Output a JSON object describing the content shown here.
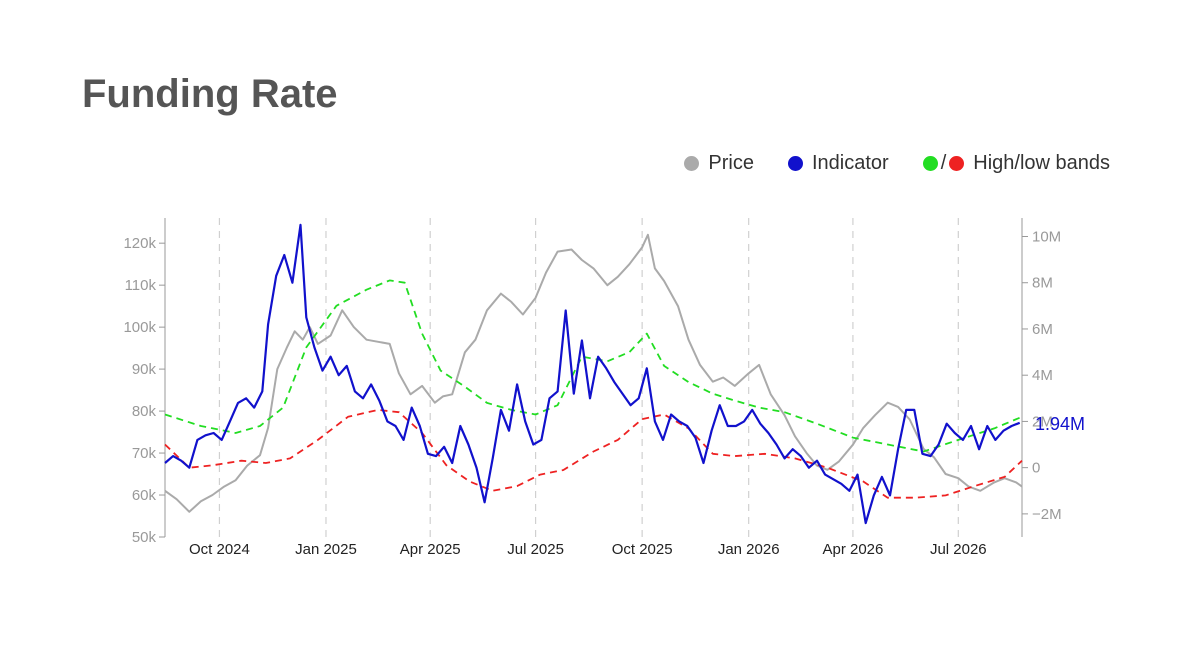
{
  "page": {
    "title": "Funding Rate"
  },
  "legend": {
    "price_label": "Price",
    "indicator_label": "Indicator",
    "bands_label": "High/low bands",
    "bands_separator": "/"
  },
  "colors": {
    "price": "#aaaaaa",
    "indicator": "#1111cc",
    "high_band": "#22dd22",
    "low_band": "#ee2222",
    "axis": "#999999",
    "grid": "#d0d0d0"
  },
  "chart_data": {
    "type": "line",
    "title": "Funding Rate",
    "x_axis": {
      "type": "date",
      "range": [
        "2024-08-15",
        "2026-08-25"
      ],
      "ticks": [
        {
          "date": "2024-10-01",
          "label": "Oct 2024"
        },
        {
          "date": "2025-01-01",
          "label": "Jan 2025"
        },
        {
          "date": "2025-04-01",
          "label": "Apr 2025"
        },
        {
          "date": "2025-07-01",
          "label": "Jul 2025"
        },
        {
          "date": "2025-10-01",
          "label": "Oct 2025"
        },
        {
          "date": "2026-01-01",
          "label": "Jan 2026"
        },
        {
          "date": "2026-04-01",
          "label": "Apr 2026"
        },
        {
          "date": "2026-07-01",
          "label": "Jul 2026"
        }
      ],
      "grid": "dashed-vertical"
    },
    "y_left": {
      "range": [
        50000,
        126000
      ],
      "ticks": [
        50000,
        60000,
        70000,
        80000,
        90000,
        100000,
        110000,
        120000
      ],
      "tick_labels": [
        "50k",
        "60k",
        "70k",
        "80k",
        "90k",
        "100k",
        "110k",
        "120k"
      ]
    },
    "y_right": {
      "range": [
        -3000000,
        10800000
      ],
      "ticks": [
        -2000000,
        0,
        2000000,
        4000000,
        6000000,
        8000000,
        10000000
      ],
      "tick_labels": [
        "−2M",
        "0",
        "2M",
        "4M",
        "6M",
        "8M",
        "10M"
      ]
    },
    "last_value_label": "1.94M",
    "series": [
      {
        "name": "Price",
        "axis": "left",
        "color": "#aaaaaa",
        "x": [
          "2024-08-15",
          "2024-08-25",
          "2024-09-05",
          "2024-09-15",
          "2024-09-25",
          "2024-10-05",
          "2024-10-15",
          "2024-10-25",
          "2024-11-05",
          "2024-11-12",
          "2024-11-20",
          "2024-11-28",
          "2024-12-05",
          "2024-12-12",
          "2024-12-18",
          "2024-12-25",
          "2025-01-05",
          "2025-01-15",
          "2025-01-25",
          "2025-02-05",
          "2025-02-15",
          "2025-02-25",
          "2025-03-05",
          "2025-03-15",
          "2025-03-25",
          "2025-04-05",
          "2025-04-12",
          "2025-04-20",
          "2025-05-01",
          "2025-05-10",
          "2025-05-20",
          "2025-06-01",
          "2025-06-10",
          "2025-06-20",
          "2025-07-01",
          "2025-07-10",
          "2025-07-20",
          "2025-08-01",
          "2025-08-10",
          "2025-08-20",
          "2025-09-01",
          "2025-09-10",
          "2025-09-20",
          "2025-10-01",
          "2025-10-06",
          "2025-10-12",
          "2025-10-20",
          "2025-11-01",
          "2025-11-10",
          "2025-11-20",
          "2025-12-01",
          "2025-12-10",
          "2025-12-20",
          "2026-01-01",
          "2026-01-10",
          "2026-01-20",
          "2026-02-01",
          "2026-02-10",
          "2026-02-20",
          "2026-03-01",
          "2026-03-10",
          "2026-03-20",
          "2026-04-01",
          "2026-04-10",
          "2026-04-20",
          "2026-05-01",
          "2026-05-10",
          "2026-05-20",
          "2026-06-01",
          "2026-06-10",
          "2026-06-20",
          "2026-07-01",
          "2026-07-10",
          "2026-07-20",
          "2026-08-01",
          "2026-08-10",
          "2026-08-20",
          "2026-08-25"
        ],
        "y": [
          61000,
          59000,
          56000,
          58500,
          60000,
          62000,
          63500,
          67000,
          69500,
          76000,
          90000,
          95000,
          99000,
          97000,
          100000,
          96000,
          98000,
          104000,
          100000,
          97000,
          96500,
          96000,
          89000,
          84000,
          86000,
          82000,
          83500,
          84000,
          94000,
          97000,
          104000,
          108000,
          106000,
          103000,
          107000,
          113000,
          118000,
          118500,
          116000,
          114000,
          110000,
          112000,
          115000,
          119000,
          122000,
          114000,
          111000,
          105000,
          97000,
          91000,
          87000,
          88000,
          86000,
          89000,
          91000,
          84000,
          79000,
          74000,
          70000,
          67000,
          66000,
          68000,
          72000,
          76000,
          79000,
          82000,
          81000,
          78000,
          71000,
          69000,
          65000,
          64000,
          62000,
          61000,
          63000,
          64000,
          63000,
          62000
        ]
      },
      {
        "name": "Indicator",
        "axis": "right",
        "color": "#1111cc",
        "x": [
          "2024-08-15",
          "2024-08-22",
          "2024-08-29",
          "2024-09-05",
          "2024-09-12",
          "2024-09-19",
          "2024-09-26",
          "2024-10-03",
          "2024-10-10",
          "2024-10-17",
          "2024-10-24",
          "2024-10-31",
          "2024-11-07",
          "2024-11-12",
          "2024-11-19",
          "2024-11-26",
          "2024-12-03",
          "2024-12-10",
          "2024-12-15",
          "2024-12-22",
          "2024-12-29",
          "2025-01-05",
          "2025-01-12",
          "2025-01-19",
          "2025-01-26",
          "2025-02-02",
          "2025-02-09",
          "2025-02-16",
          "2025-02-23",
          "2025-03-02",
          "2025-03-09",
          "2025-03-16",
          "2025-03-23",
          "2025-03-30",
          "2025-04-06",
          "2025-04-13",
          "2025-04-20",
          "2025-04-27",
          "2025-05-04",
          "2025-05-11",
          "2025-05-18",
          "2025-05-25",
          "2025-06-01",
          "2025-06-08",
          "2025-06-15",
          "2025-06-22",
          "2025-06-29",
          "2025-07-06",
          "2025-07-13",
          "2025-07-20",
          "2025-07-27",
          "2025-08-03",
          "2025-08-10",
          "2025-08-17",
          "2025-08-24",
          "2025-08-31",
          "2025-09-07",
          "2025-09-14",
          "2025-09-21",
          "2025-09-28",
          "2025-10-05",
          "2025-10-12",
          "2025-10-19",
          "2025-10-26",
          "2025-11-02",
          "2025-11-09",
          "2025-11-16",
          "2025-11-23",
          "2025-11-30",
          "2025-12-07",
          "2025-12-14",
          "2025-12-21",
          "2025-12-28",
          "2026-01-04",
          "2026-01-11",
          "2026-01-18",
          "2026-01-25",
          "2026-02-01",
          "2026-02-08",
          "2026-02-15",
          "2026-02-22",
          "2026-03-01",
          "2026-03-08",
          "2026-03-15",
          "2026-03-22",
          "2026-03-29",
          "2026-04-05",
          "2026-04-12",
          "2026-04-19",
          "2026-04-26",
          "2026-05-03",
          "2026-05-10",
          "2026-05-17",
          "2026-05-24",
          "2026-05-31",
          "2026-06-07",
          "2026-06-14",
          "2026-06-21",
          "2026-06-28",
          "2026-07-05",
          "2026-07-12",
          "2026-07-19",
          "2026-07-26",
          "2026-08-02",
          "2026-08-09",
          "2026-08-16",
          "2026-08-23"
        ],
        "y": [
          200000,
          500000,
          300000,
          0,
          1200000,
          1400000,
          1500000,
          1200000,
          2000000,
          2800000,
          3000000,
          2600000,
          3300000,
          6200000,
          8300000,
          9200000,
          8000000,
          10500000,
          6500000,
          5200000,
          4200000,
          4800000,
          4000000,
          4400000,
          3300000,
          3000000,
          3600000,
          2900000,
          2000000,
          1800000,
          1200000,
          2600000,
          1800000,
          600000,
          500000,
          900000,
          200000,
          1800000,
          1000000,
          0,
          -1500000,
          400000,
          2500000,
          1600000,
          3600000,
          2000000,
          1000000,
          1200000,
          3000000,
          3300000,
          6800000,
          3200000,
          5500000,
          3000000,
          4800000,
          4300000,
          3700000,
          3200000,
          2700000,
          3000000,
          4300000,
          2000000,
          1200000,
          2300000,
          2000000,
          1800000,
          1300000,
          200000,
          1600000,
          2700000,
          1800000,
          1800000,
          2000000,
          2500000,
          1900000,
          1500000,
          1000000,
          400000,
          800000,
          500000,
          0,
          300000,
          -300000,
          -500000,
          -700000,
          -1000000,
          -300000,
          -2400000,
          -1200000,
          -400000,
          -1200000,
          800000,
          2500000,
          2500000,
          600000,
          500000,
          1000000,
          1900000,
          1500000,
          1200000,
          1800000,
          800000,
          1800000,
          1200000,
          1600000,
          1800000,
          1940000
        ]
      },
      {
        "name": "High band",
        "axis": "right",
        "color": "#22dd22",
        "dash": true,
        "x": [
          "2024-08-15",
          "2024-09-15",
          "2024-10-15",
          "2024-11-05",
          "2024-11-25",
          "2024-12-15",
          "2025-01-10",
          "2025-02-05",
          "2025-02-25",
          "2025-03-10",
          "2025-03-25",
          "2025-04-10",
          "2025-05-01",
          "2025-05-20",
          "2025-06-10",
          "2025-07-01",
          "2025-07-20",
          "2025-08-10",
          "2025-09-01",
          "2025-09-20",
          "2025-10-05",
          "2025-10-20",
          "2025-11-10",
          "2025-12-01",
          "2025-12-20",
          "2026-01-10",
          "2026-02-01",
          "2026-03-01",
          "2026-04-01",
          "2026-05-01",
          "2026-06-01",
          "2026-07-01",
          "2026-08-01",
          "2026-08-25"
        ],
        "y": [
          2300000,
          1800000,
          1500000,
          1800000,
          2600000,
          5200000,
          7000000,
          7700000,
          8100000,
          8000000,
          5800000,
          4200000,
          3500000,
          2800000,
          2500000,
          2300000,
          2700000,
          4800000,
          4600000,
          5000000,
          5800000,
          4400000,
          3700000,
          3200000,
          2900000,
          2600000,
          2400000,
          1900000,
          1300000,
          1000000,
          700000,
          1200000,
          1700000,
          2200000
        ]
      },
      {
        "name": "Low band",
        "axis": "right",
        "color": "#ee2222",
        "dash": true,
        "x": [
          "2024-08-15",
          "2024-09-05",
          "2024-09-25",
          "2024-10-20",
          "2024-11-10",
          "2024-12-01",
          "2024-12-25",
          "2025-01-20",
          "2025-02-15",
          "2025-03-05",
          "2025-03-25",
          "2025-04-15",
          "2025-05-05",
          "2025-05-25",
          "2025-06-15",
          "2025-07-05",
          "2025-07-25",
          "2025-08-20",
          "2025-09-10",
          "2025-10-01",
          "2025-10-20",
          "2025-11-10",
          "2025-12-01",
          "2025-12-20",
          "2026-01-15",
          "2026-02-10",
          "2026-03-10",
          "2026-04-10",
          "2026-05-01",
          "2026-05-25",
          "2026-06-20",
          "2026-07-15",
          "2026-08-10",
          "2026-08-25"
        ],
        "y": [
          1000000,
          0,
          100000,
          300000,
          200000,
          400000,
          1200000,
          2200000,
          2500000,
          2400000,
          1500000,
          100000,
          -600000,
          -1000000,
          -800000,
          -300000,
          -100000,
          700000,
          1200000,
          2100000,
          2300000,
          1700000,
          600000,
          500000,
          600000,
          400000,
          0,
          -600000,
          -1300000,
          -1300000,
          -1200000,
          -800000,
          -400000,
          300000
        ]
      }
    ]
  }
}
